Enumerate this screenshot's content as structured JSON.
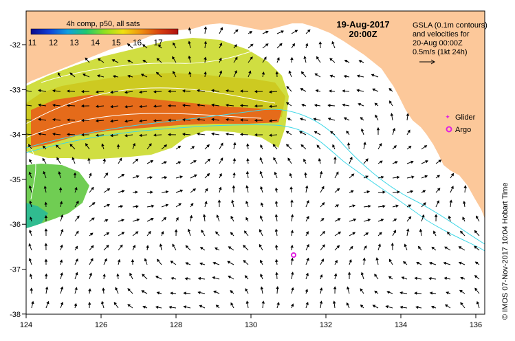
{
  "colorbar": {
    "title": "4h comp, p50, all sats",
    "ticks": [
      "11",
      "12",
      "13",
      "14",
      "15",
      "16",
      "17"
    ],
    "stops": [
      "#0a0a8a",
      "#1040d8",
      "#10a0e0",
      "#20c870",
      "#90e020",
      "#f0e010",
      "#f09010",
      "#d84010",
      "#b01010"
    ]
  },
  "timestamp": {
    "date": "19-Aug-2017",
    "time": "20:00Z"
  },
  "legend": {
    "line1": "GSLA (0.1m contours)",
    "line2": "and velocities for",
    "line3": "20-Aug 00:00Z",
    "line4": "0.5m/s (1kt 24h)"
  },
  "markers": {
    "glider_label": "Glider",
    "argo_label": "Argo"
  },
  "credit": "© IMOS 07-Nov-2017 10:04 Hobart Time",
  "axes": {
    "x_ticks": [
      "124",
      "126",
      "128",
      "130",
      "132",
      "134",
      "136"
    ],
    "y_ticks": [
      "-32",
      "-33",
      "-34",
      "-35",
      "-36",
      "-37",
      "-38"
    ]
  },
  "colors": {
    "land": "#fcc89a",
    "contour": "#ffffff",
    "bathy": "#40d8e8",
    "marker": "#e020e0"
  }
}
